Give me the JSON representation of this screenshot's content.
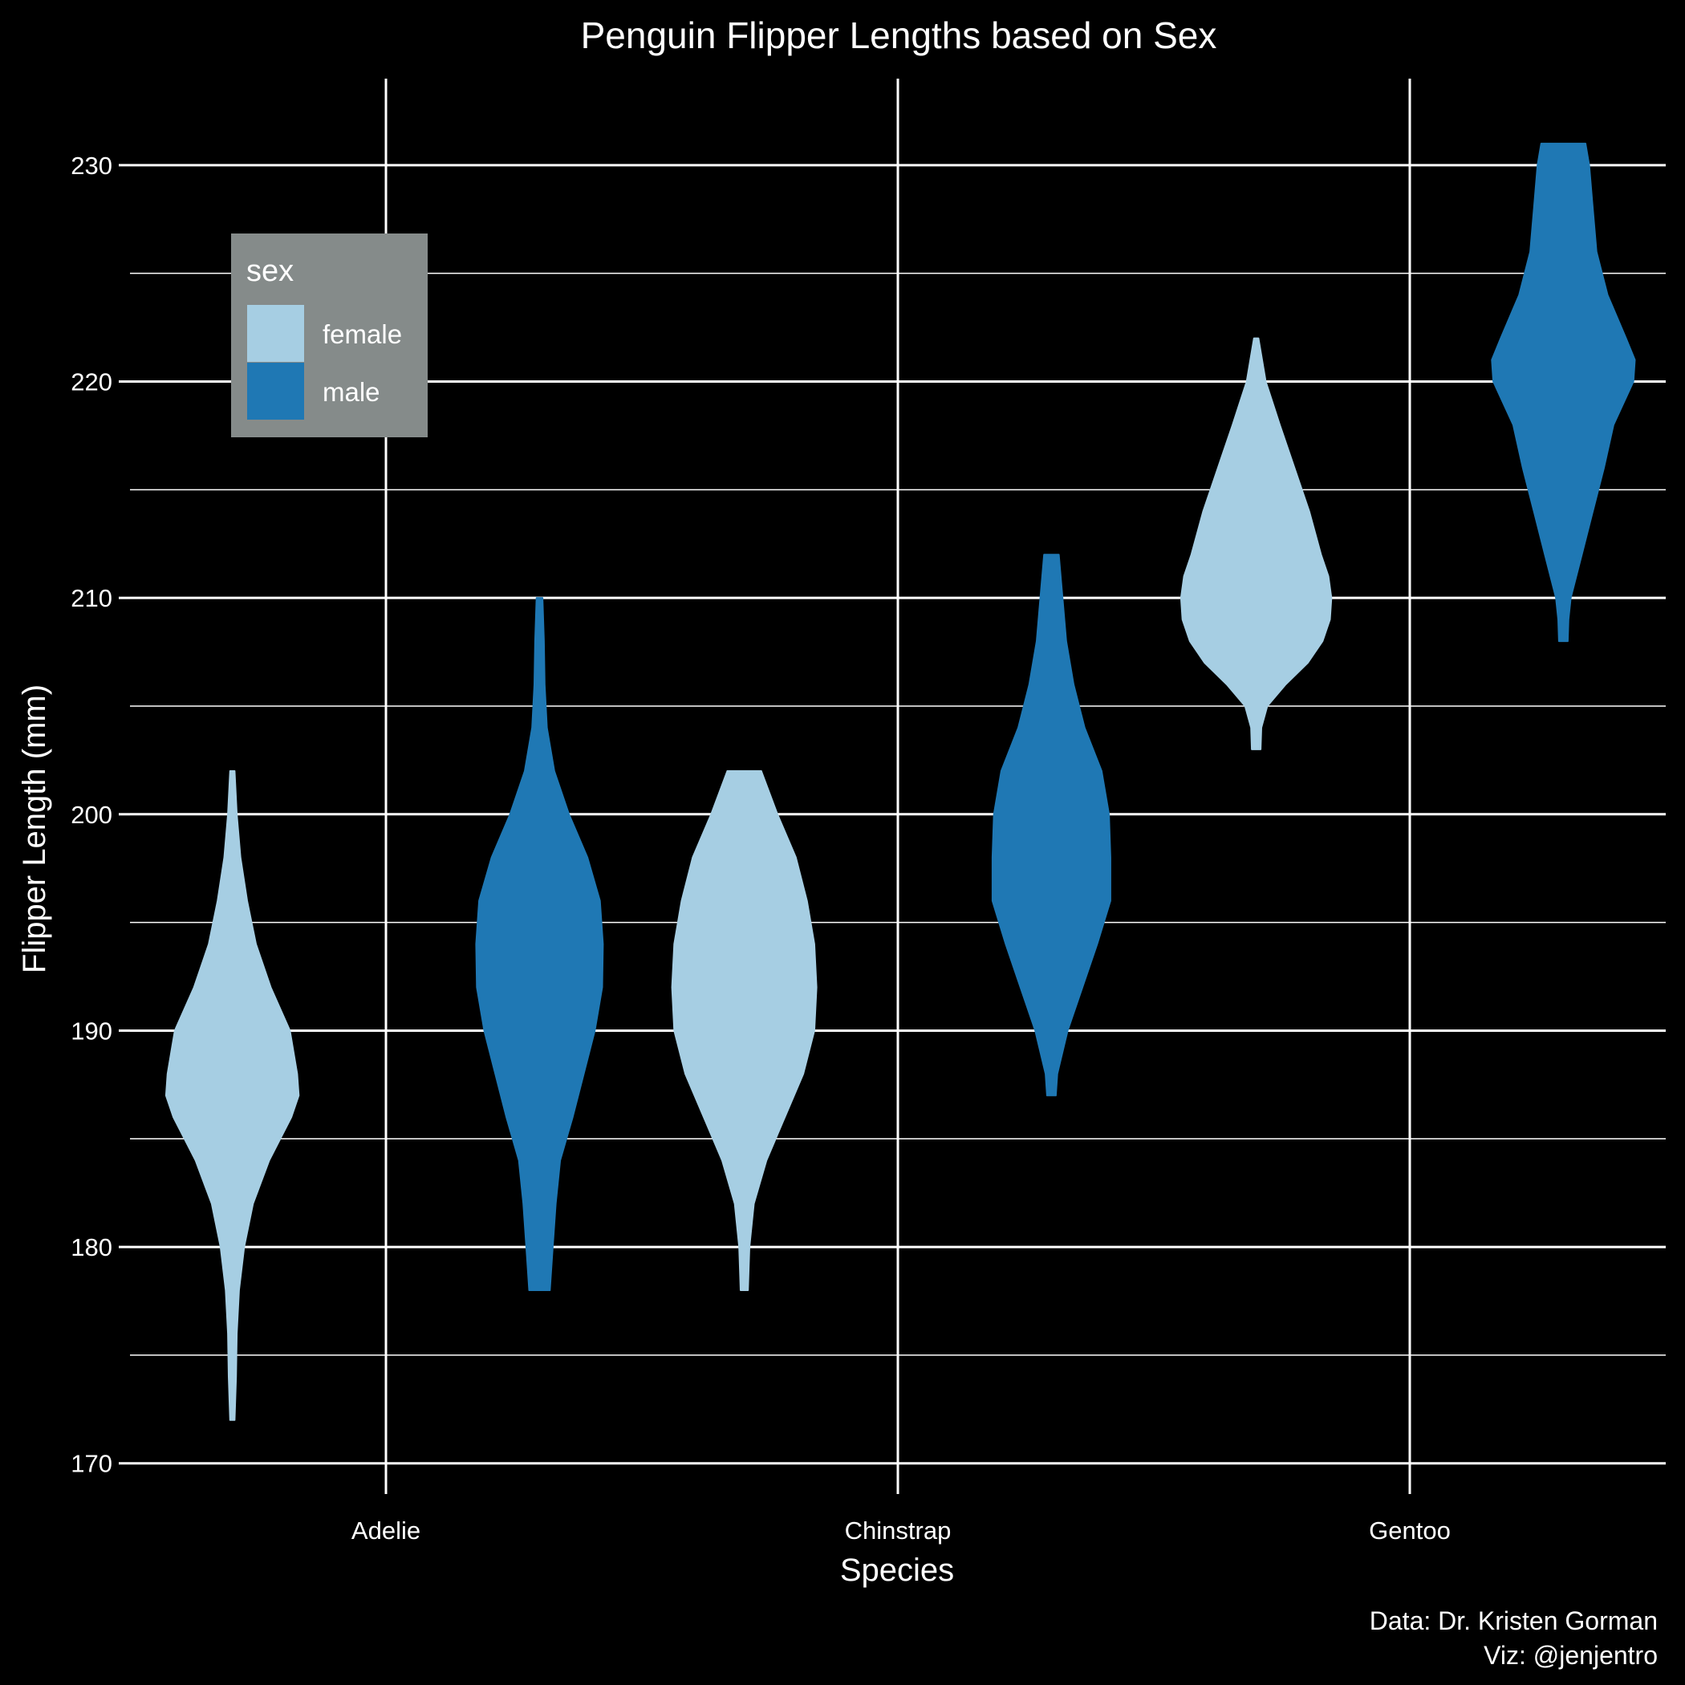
{
  "chart_data": {
    "type": "violin",
    "title": "Penguin Flipper Lengths based on Sex",
    "xlabel": "Species",
    "ylabel": "Flipper Length (mm)",
    "caption": [
      "Data: Dr. Kristen Gorman",
      "Viz: @jenjentro"
    ],
    "categories": [
      "Adelie",
      "Chinstrap",
      "Gentoo"
    ],
    "ylim": [
      169.1,
      234
    ],
    "yticks": [
      170,
      180,
      190,
      200,
      210,
      220,
      230
    ],
    "y_minor_ticks": [
      175,
      185,
      195,
      205,
      215,
      225
    ],
    "grid": true,
    "legend": {
      "title": "sex",
      "position": "top-left",
      "items": [
        {
          "label": "female",
          "color": "#A6CEE3"
        },
        {
          "label": "male",
          "color": "#1F78B4"
        }
      ]
    },
    "series": [
      {
        "name": "female",
        "color": "#A6CEE3",
        "violins": [
          {
            "category": "Adelie",
            "profile": [
              [
                172,
                0.03
              ],
              [
                174,
                0.05
              ],
              [
                176,
                0.06
              ],
              [
                178,
                0.09
              ],
              [
                180,
                0.16
              ],
              [
                182,
                0.28
              ],
              [
                184,
                0.5
              ],
              [
                186,
                0.8
              ],
              [
                187,
                0.9
              ],
              [
                188,
                0.88
              ],
              [
                190,
                0.78
              ],
              [
                192,
                0.52
              ],
              [
                194,
                0.32
              ],
              [
                196,
                0.2
              ],
              [
                198,
                0.11
              ],
              [
                200,
                0.06
              ],
              [
                202,
                0.03
              ]
            ]
          },
          {
            "category": "Chinstrap",
            "profile": [
              [
                178,
                0.05
              ],
              [
                180,
                0.07
              ],
              [
                182,
                0.13
              ],
              [
                184,
                0.3
              ],
              [
                186,
                0.55
              ],
              [
                188,
                0.8
              ],
              [
                190,
                0.95
              ],
              [
                192,
                0.98
              ],
              [
                194,
                0.95
              ],
              [
                196,
                0.85
              ],
              [
                198,
                0.7
              ],
              [
                200,
                0.45
              ],
              [
                202,
                0.23
              ]
            ]
          },
          {
            "category": "Gentoo",
            "profile": [
              [
                203,
                0.06
              ],
              [
                204,
                0.07
              ],
              [
                205,
                0.15
              ],
              [
                206,
                0.4
              ],
              [
                207,
                0.7
              ],
              [
                208,
                0.9
              ],
              [
                209,
                1.0
              ],
              [
                210,
                1.02
              ],
              [
                211,
                0.98
              ],
              [
                212,
                0.88
              ],
              [
                214,
                0.72
              ],
              [
                216,
                0.52
              ],
              [
                218,
                0.32
              ],
              [
                220,
                0.13
              ],
              [
                222,
                0.03
              ]
            ]
          }
        ]
      },
      {
        "name": "male",
        "color": "#1F78B4",
        "violins": [
          {
            "category": "Adelie",
            "profile": [
              [
                178,
                0.14
              ],
              [
                180,
                0.18
              ],
              [
                182,
                0.22
              ],
              [
                184,
                0.28
              ],
              [
                186,
                0.45
              ],
              [
                188,
                0.6
              ],
              [
                190,
                0.75
              ],
              [
                192,
                0.85
              ],
              [
                194,
                0.86
              ],
              [
                196,
                0.82
              ],
              [
                198,
                0.65
              ],
              [
                200,
                0.4
              ],
              [
                202,
                0.2
              ],
              [
                204,
                0.1
              ],
              [
                206,
                0.07
              ],
              [
                208,
                0.06
              ],
              [
                210,
                0.04
              ]
            ]
          },
          {
            "category": "Chinstrap",
            "profile": [
              [
                187,
                0.06
              ],
              [
                188,
                0.08
              ],
              [
                190,
                0.22
              ],
              [
                192,
                0.42
              ],
              [
                194,
                0.62
              ],
              [
                196,
                0.8
              ],
              [
                198,
                0.8
              ],
              [
                200,
                0.78
              ],
              [
                202,
                0.68
              ],
              [
                204,
                0.45
              ],
              [
                206,
                0.3
              ],
              [
                208,
                0.2
              ],
              [
                210,
                0.15
              ],
              [
                212,
                0.1
              ]
            ]
          },
          {
            "category": "Gentoo",
            "profile": [
              [
                208,
                0.06
              ],
              [
                209,
                0.07
              ],
              [
                210,
                0.1
              ],
              [
                212,
                0.25
              ],
              [
                214,
                0.4
              ],
              [
                216,
                0.55
              ],
              [
                218,
                0.68
              ],
              [
                220,
                0.95
              ],
              [
                221,
                0.97
              ],
              [
                222,
                0.85
              ],
              [
                224,
                0.6
              ],
              [
                226,
                0.45
              ],
              [
                228,
                0.4
              ],
              [
                230,
                0.35
              ],
              [
                231,
                0.3
              ]
            ]
          }
        ]
      }
    ]
  }
}
